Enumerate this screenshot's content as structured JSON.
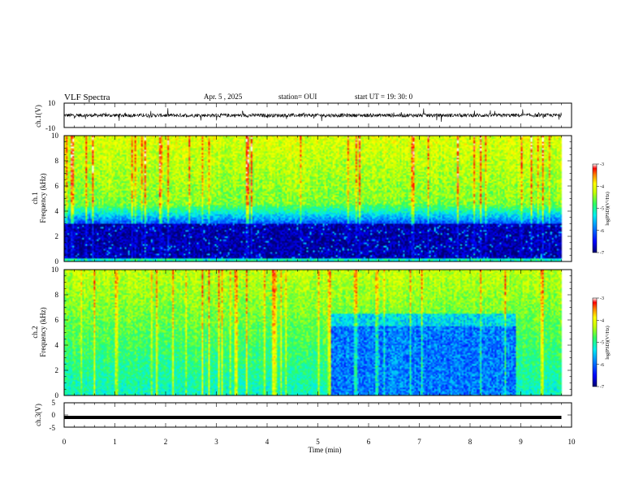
{
  "header": {
    "title": "VLF Spectra",
    "date": "Apr. 5 , 2025",
    "station": "station= OUI",
    "start_ut": "start UT =  19: 30: 0"
  },
  "colors": {
    "spectrum_scale": [
      "#00007a",
      "#0000ff",
      "#0080ff",
      "#00e0ff",
      "#40ff80",
      "#c0ff00",
      "#ffff00",
      "#ff8000",
      "#ff0000",
      "#ffffff"
    ],
    "trace": "#000000"
  },
  "chart_data": [
    {
      "type": "line",
      "panel": "ch1-waveform",
      "ylabel": "ch.1(V)",
      "ylim": [
        -10,
        10
      ],
      "yticks": [
        "10",
        "-10"
      ],
      "xlim": [
        0,
        10
      ],
      "baseline_V": 0,
      "noise_amplitude_V": 1.5,
      "data_end_min": 9.8
    },
    {
      "type": "heatmap",
      "panel": "ch1-spectrogram",
      "ylabel_top": "ch.1",
      "ylabel": "Frequency (kHz)",
      "ylim": [
        0,
        10
      ],
      "yticks": [
        "0",
        "2",
        "4",
        "6",
        "8",
        "10"
      ],
      "xlim": [
        0,
        10
      ],
      "data_end_min": 9.8,
      "colorbar": {
        "label": "log(PSD)(V²/Hz)",
        "ticks": [
          "-3",
          "-4",
          "-5",
          "-6",
          "-7"
        ],
        "range": [
          -7,
          -3
        ]
      },
      "low_psd_band_kHz": [
        0.3,
        3.0
      ],
      "description_values": {
        "upper_band_log_psd": -4.5,
        "low_band_log_psd": -6.8
      }
    },
    {
      "type": "heatmap",
      "panel": "ch2-spectrogram",
      "ylabel_top": "ch.2",
      "ylabel": "Frequency (kHz)",
      "ylim": [
        0,
        10
      ],
      "yticks": [
        "0",
        "2",
        "4",
        "6",
        "8",
        "10"
      ],
      "xlim": [
        0,
        10
      ],
      "data_end_min": 9.8,
      "colorbar": {
        "label": "log(PSD)(V²/Hz)",
        "ticks": [
          "-3",
          "-4",
          "-5",
          "-6",
          "-7"
        ],
        "range": [
          -7,
          -3
        ]
      },
      "quiet_interval_min": [
        5.25,
        8.9
      ],
      "quiet_interval_max_kHz": 6.5,
      "description_values": {
        "background_log_psd": -4.8,
        "quiet_log_psd": -5.9
      }
    },
    {
      "type": "line",
      "panel": "ch3-waveform",
      "ylabel": "ch.3(V)",
      "ylim": [
        -5,
        5
      ],
      "yticks": [
        "5",
        "0",
        "-5"
      ],
      "xlim": [
        0,
        10
      ],
      "constant_value_V": -1,
      "data_end_min": 9.8
    }
  ],
  "xaxis": {
    "label": "Time (min)",
    "ticks": [
      "0",
      "1",
      "2",
      "3",
      "4",
      "5",
      "6",
      "7",
      "8",
      "9",
      "10"
    ]
  }
}
